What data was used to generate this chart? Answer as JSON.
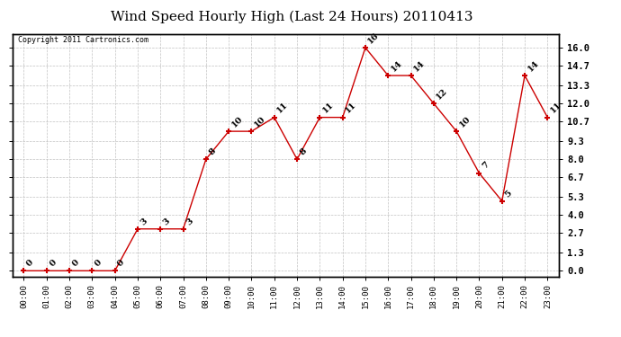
{
  "title": "Wind Speed Hourly High (Last 24 Hours) 20110413",
  "copyright": "Copyright 2011 Cartronics.com",
  "hours": [
    "00:00",
    "01:00",
    "02:00",
    "03:00",
    "04:00",
    "05:00",
    "06:00",
    "07:00",
    "08:00",
    "09:00",
    "10:00",
    "11:00",
    "12:00",
    "13:00",
    "14:00",
    "15:00",
    "16:00",
    "17:00",
    "18:00",
    "19:00",
    "20:00",
    "21:00",
    "22:00",
    "23:00"
  ],
  "values": [
    0,
    0,
    0,
    0,
    0,
    3,
    3,
    3,
    8,
    10,
    10,
    11,
    8,
    11,
    11,
    16,
    14,
    14,
    12,
    10,
    7,
    5,
    14,
    11
  ],
  "line_color": "#cc0000",
  "marker_color": "#cc0000",
  "bg_color": "#ffffff",
  "grid_color": "#bbbbbb",
  "title_fontsize": 11,
  "yticks": [
    0.0,
    1.3,
    2.7,
    4.0,
    5.3,
    6.7,
    8.0,
    9.3,
    10.7,
    12.0,
    13.3,
    14.7,
    16.0
  ],
  "ylim": [
    -0.4,
    17.0
  ],
  "annotation_color": "#000000",
  "annotation_fontsize": 7
}
